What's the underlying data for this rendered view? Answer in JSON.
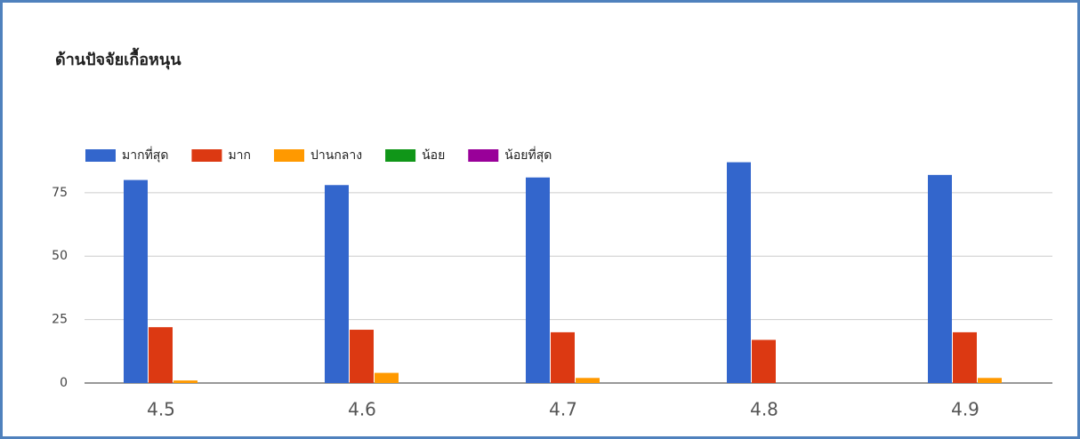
{
  "chart_data": {
    "type": "bar",
    "title": "ด้านปัจจัยเกื้อหนุน",
    "categories": [
      "4.5",
      "4.6",
      "4.7",
      "4.8",
      "4.9"
    ],
    "series": [
      {
        "name": "มากที่สุด",
        "color": "#3366cc",
        "values": [
          80,
          78,
          81,
          87,
          82
        ]
      },
      {
        "name": "มาก",
        "color": "#dc3912",
        "values": [
          22,
          21,
          20,
          17,
          20
        ]
      },
      {
        "name": "ปานกลาง",
        "color": "#ff9900",
        "values": [
          1,
          4,
          2,
          0,
          2
        ]
      },
      {
        "name": "น้อย",
        "color": "#109618",
        "values": [
          0,
          0,
          0,
          0,
          0
        ]
      },
      {
        "name": "น้อยที่สุด",
        "color": "#990099",
        "values": [
          0,
          0,
          0,
          0,
          0
        ]
      }
    ],
    "ylim": [
      0,
      90
    ],
    "yticks": [
      0,
      25,
      50,
      75
    ],
    "grid": true,
    "legend": "top"
  }
}
